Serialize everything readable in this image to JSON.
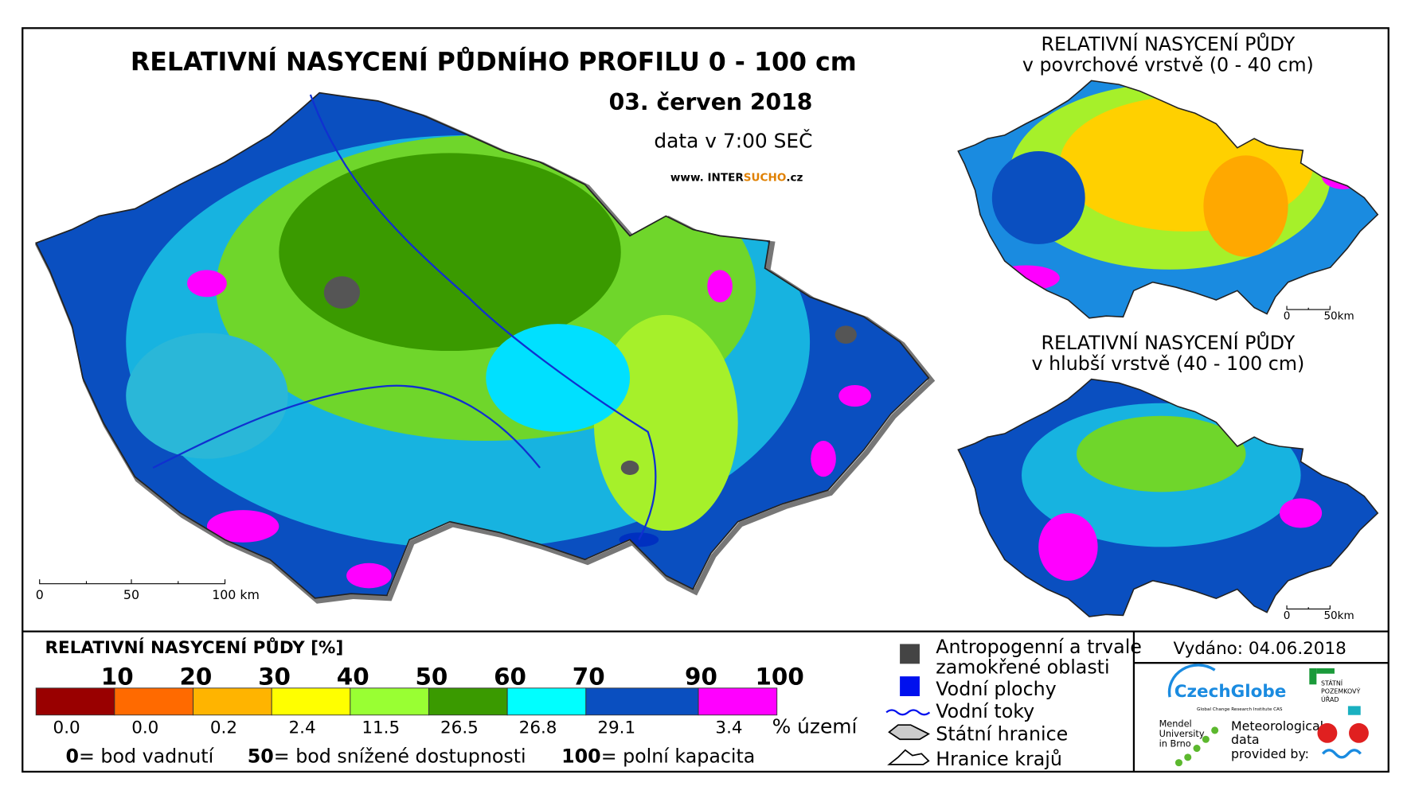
{
  "header": {
    "title": "RELATIVNÍ NASYCENÍ PŮDNÍHO PROFILU 0 - 100 cm",
    "date": "03. červen 2018",
    "time": "data v 7:00 SEČ",
    "website": [
      "www. INTER",
      "SUCHO",
      ".cz"
    ]
  },
  "main_map": {
    "scale_labels": [
      "0",
      "50",
      "100 km"
    ]
  },
  "inset_top": {
    "title": [
      "RELATIVNÍ NASYCENÍ PŮDY",
      "v povrchové vrstvě (0 - 40 cm)"
    ],
    "scale_labels": [
      "0",
      "50km"
    ]
  },
  "inset_bottom": {
    "title": [
      "RELATIVNÍ NASYCENÍ PŮDY",
      "v hlubší vrstvě (40 - 100 cm)"
    ],
    "scale_labels": [
      "0",
      "50km"
    ]
  },
  "legend": {
    "title": "RELATIVNÍ NASYCENÍ PŮDY [%]",
    "boundaries": [
      10,
      20,
      30,
      40,
      50,
      60,
      70,
      90,
      100
    ],
    "classes": [
      {
        "color": "#990000",
        "share": "0.0"
      },
      {
        "color": "#ff6a00",
        "share": "0.0"
      },
      {
        "color": "#ffb400",
        "share": "0.2"
      },
      {
        "color": "#ffff00",
        "share": "2.4"
      },
      {
        "color": "#99ff33",
        "share": "11.5"
      },
      {
        "color": "#3a9a00",
        "share": "26.5"
      },
      {
        "color": "#00ffff",
        "share": "26.8"
      },
      {
        "color": "#0a4fc0",
        "share": "29.1"
      },
      {
        "color": "#ff00ff",
        "share": "3.4"
      }
    ],
    "unit": "% území",
    "notes": [
      {
        "value": "0",
        "text": "= bod vadnutí"
      },
      {
        "value": "50",
        "text": "= bod snížené dostupnosti"
      },
      {
        "value": "100",
        "text": "= polní kapacita"
      }
    ]
  },
  "symbols": [
    {
      "lines": [
        "Antropogenní a trvale",
        "zamokřené oblasti"
      ]
    },
    {
      "lines": [
        "Vodní plochy"
      ]
    },
    {
      "lines": [
        "Vodní toky"
      ]
    },
    {
      "lines": [
        "Státní hranice"
      ]
    },
    {
      "lines": [
        "Hranice krajů"
      ]
    }
  ],
  "issued": "Vydáno: 04.06.2018",
  "logos": {
    "czechglobe": "CzechGlobe",
    "czechglobe_sub": "Global Change Research Institute CAS",
    "spu": [
      "STÁTNÍ",
      "POZEMKOVÝ",
      "ÚŘAD"
    ],
    "mendel": [
      "Mendel",
      "University",
      "in Brno"
    ],
    "meteo": [
      "Meteorological",
      "data",
      "provided by:"
    ]
  }
}
